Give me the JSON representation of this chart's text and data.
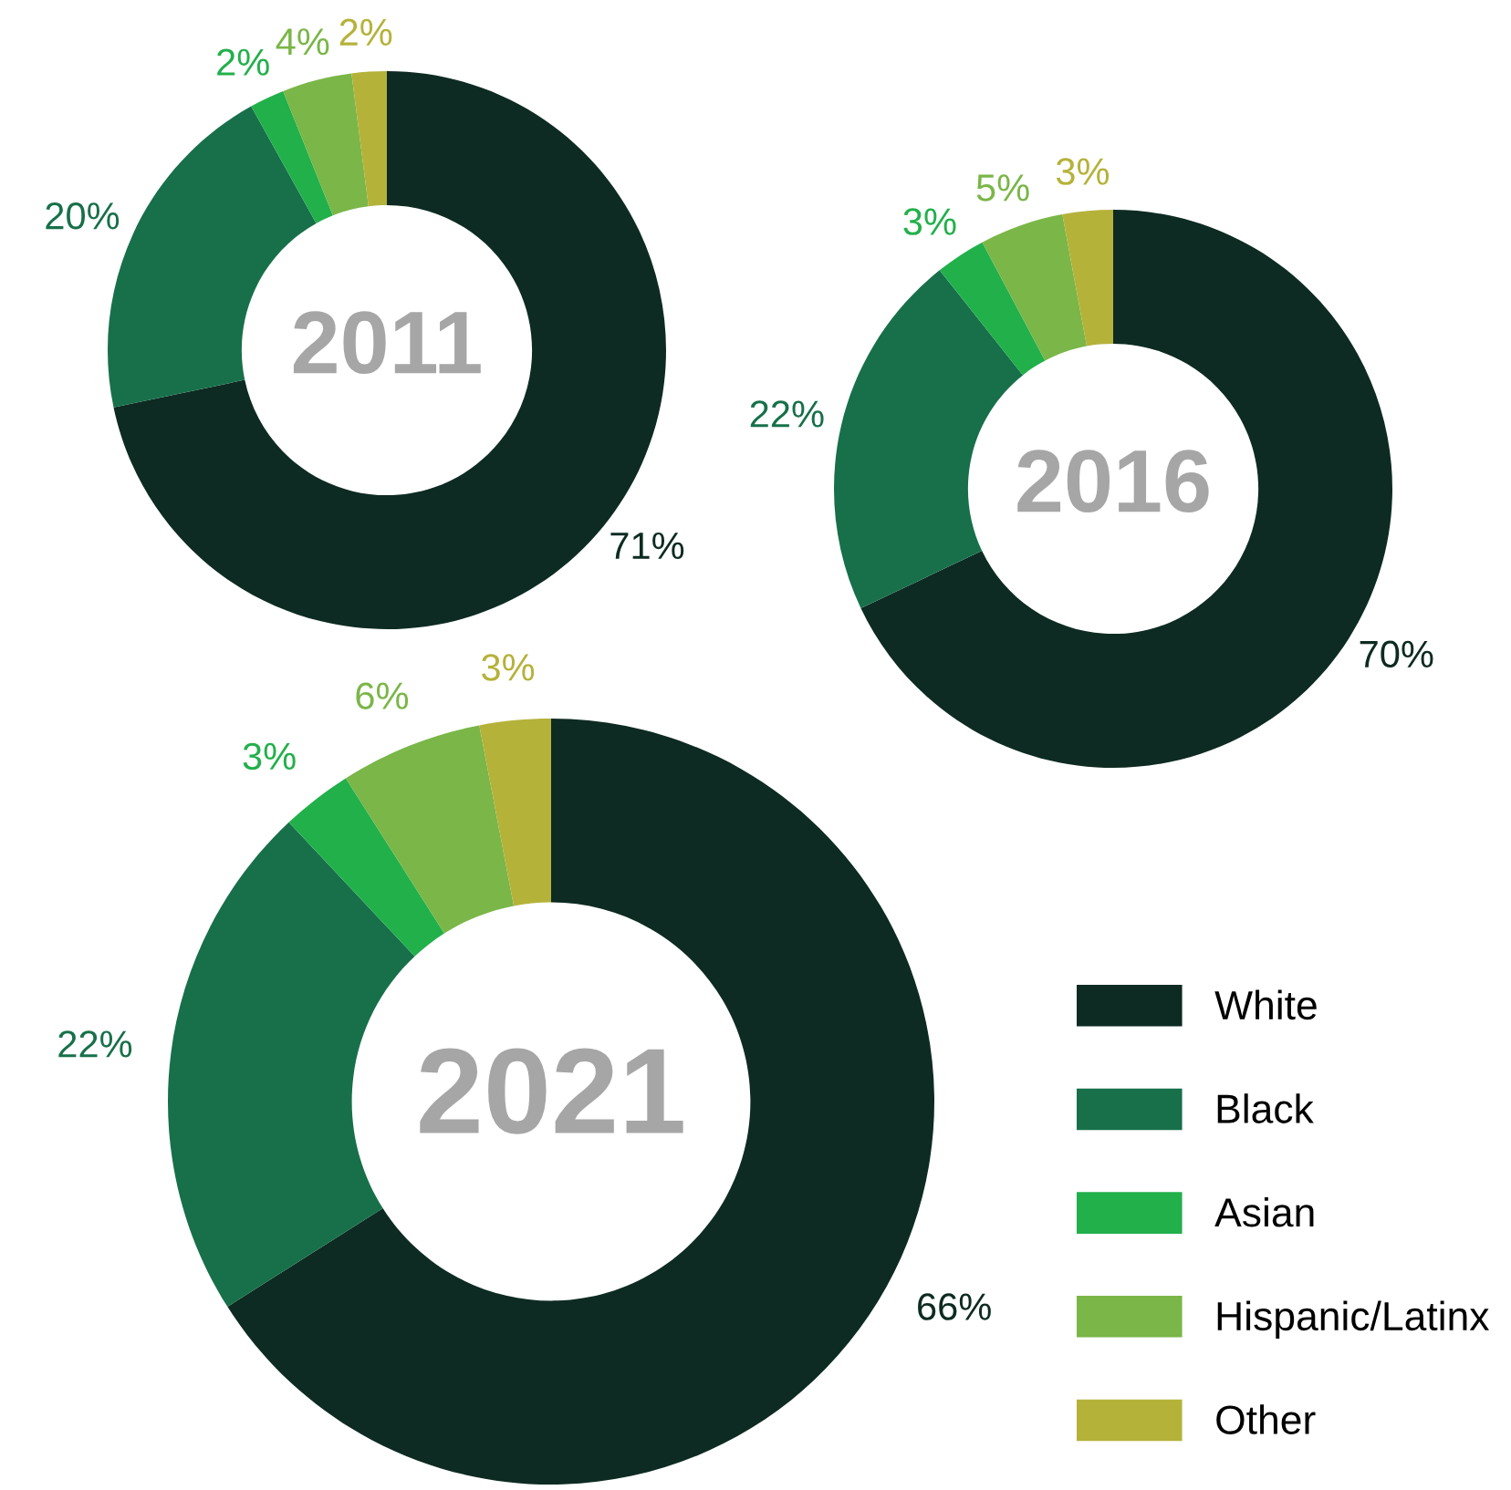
{
  "chart_data": [
    {
      "type": "donut",
      "title": "2011",
      "categories": [
        null,
        null,
        null,
        null,
        null
      ],
      "values": [
        71,
        20,
        2,
        4,
        2
      ],
      "value_labels": [
        "71%",
        "20%",
        "2%",
        "4%",
        "2%"
      ],
      "colors": [
        "#0d2b22",
        "#17704a",
        "#22b04b",
        "#7ab648",
        "#b5b23a"
      ]
    },
    {
      "type": "donut",
      "title": "2016",
      "categories": [
        null,
        null,
        null,
        null,
        null
      ],
      "values": [
        70,
        22,
        3,
        5,
        3
      ],
      "value_labels": [
        "70%",
        "22%",
        "3%",
        "5%",
        "3%"
      ],
      "colors": [
        "#0d2b22",
        "#17704a",
        "#22b04b",
        "#7ab648",
        "#b5b23a"
      ]
    },
    {
      "type": "donut",
      "title": "2021",
      "categories": [
        "White",
        "Black",
        "Asian",
        "Hispanic/Latinx",
        "Other"
      ],
      "values": [
        66,
        22,
        3,
        6,
        3
      ],
      "value_labels": [
        "66%",
        "22%",
        "3%",
        "6%",
        "3%"
      ],
      "colors": [
        "#0d2b22",
        "#17704a",
        "#22b04b",
        "#7ab648",
        "#b5b23a"
      ],
      "legend": "right"
    }
  ]
}
